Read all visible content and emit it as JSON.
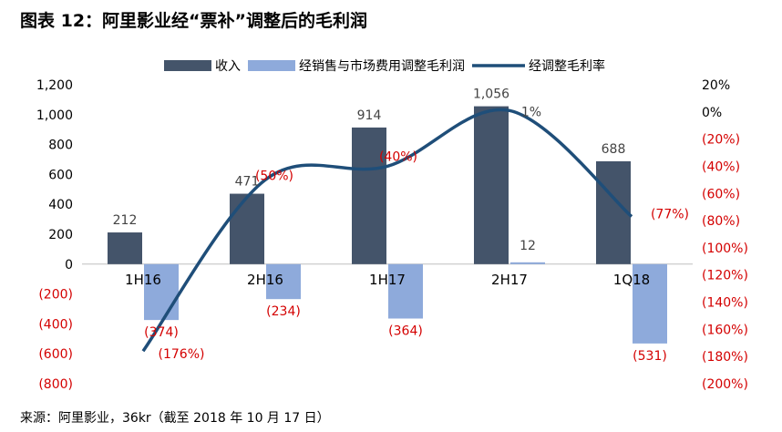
{
  "title": "图表 12：阿里影业经“票补”调整后的毛利润",
  "source": "来源：阿里影业，36kr（截至 2018 年 10 月 17 日）",
  "colors": {
    "revenue": "#44546a",
    "gross_profit": "#8eaadb",
    "margin": "#1f4e79",
    "negative": "#d40000"
  },
  "chart_data": {
    "type": "bar",
    "categories": [
      "1H16",
      "2H16",
      "1H17",
      "2H17",
      "1Q18"
    ],
    "series": [
      {
        "name": "收入",
        "type": "bar",
        "axis": "left",
        "values": [
          212,
          471,
          914,
          1056,
          688
        ],
        "labels": [
          "212",
          "471",
          "914",
          "1,056",
          "688"
        ]
      },
      {
        "name": "经销售与市场费用调整毛利润",
        "type": "bar",
        "axis": "left",
        "values": [
          -374,
          -234,
          -364,
          12,
          -531
        ],
        "labels": [
          "(374)",
          "(234)",
          "(364)",
          "12",
          "(531)"
        ]
      },
      {
        "name": "经调整毛利率",
        "type": "line",
        "axis": "right",
        "values": [
          -176,
          -50,
          -40,
          1,
          -77
        ],
        "labels": [
          "(176%)",
          "(50%)",
          "(40%)",
          "1%",
          "(77%)"
        ]
      }
    ],
    "ylim": [
      -800,
      1200
    ],
    "y2lim": [
      -200,
      20
    ],
    "y_ticks": [
      "1,200",
      "1,000",
      "800",
      "600",
      "400",
      "200",
      "0",
      "(200)",
      "(400)",
      "(600)",
      "(800)"
    ],
    "y2_ticks": [
      "20%",
      "0%",
      "(20%)",
      "(40%)",
      "(60%)",
      "(80%)",
      "(100%)",
      "(120%)",
      "(140%)",
      "(160%)",
      "(180%)",
      "(200%)"
    ],
    "legend_position": "top"
  }
}
